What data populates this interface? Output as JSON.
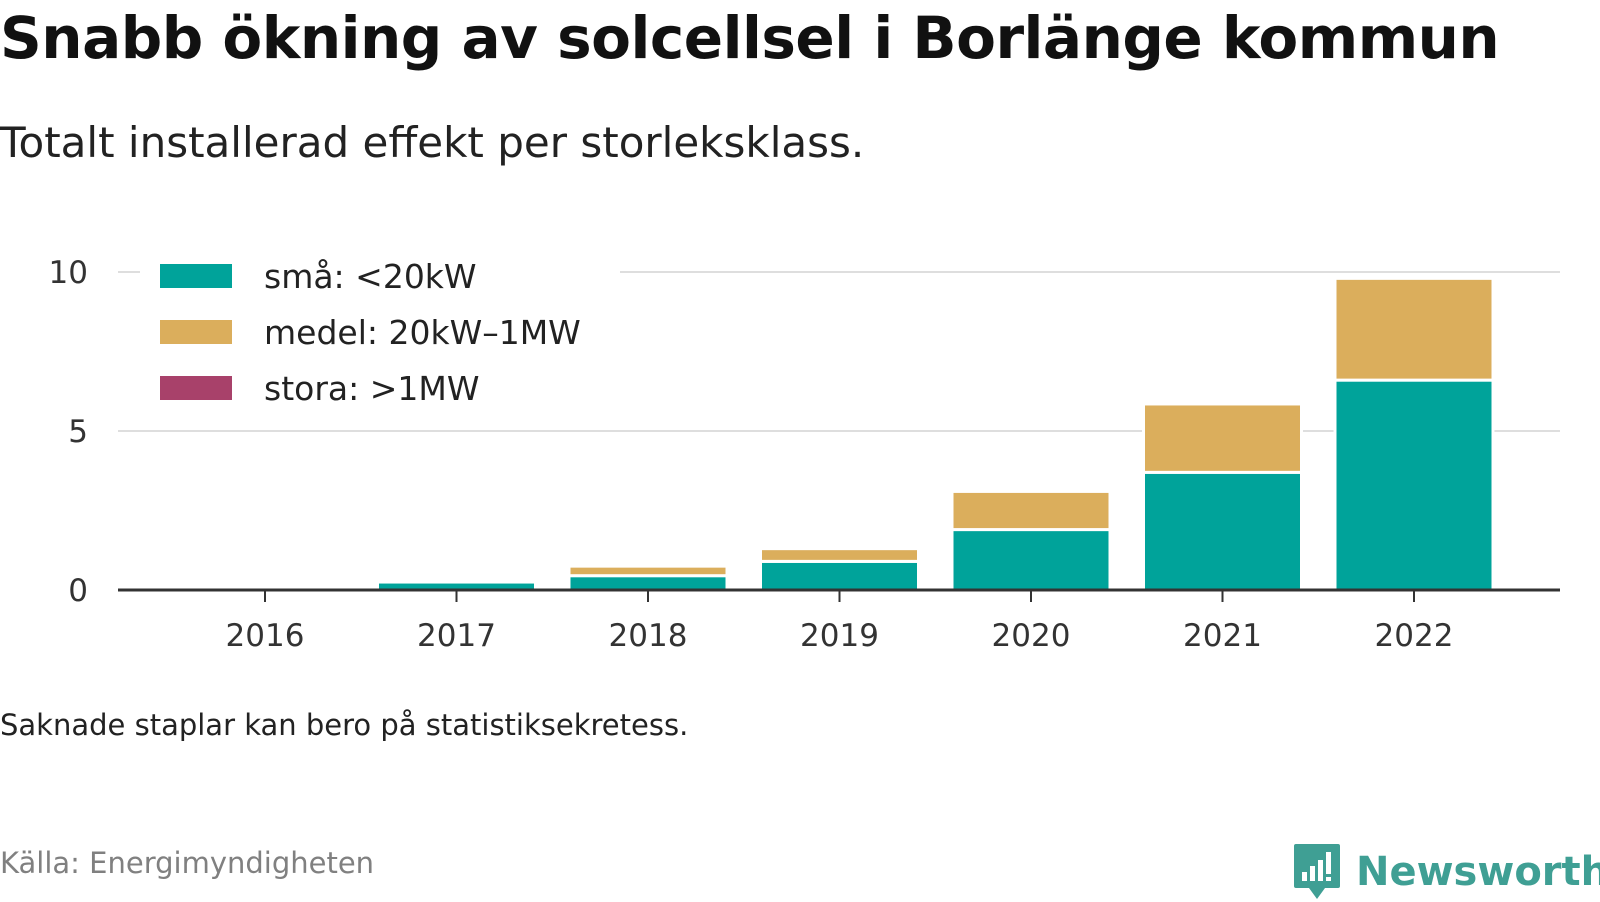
{
  "header": {
    "title": "Snabb ökning av solcellsel i Borlänge kommun",
    "subtitle": "Totalt installerad effekt per storleksklass."
  },
  "footer": {
    "note": "Saknade staplar kan bero på statistiksekretess.",
    "source": "Källa: Energimyndigheten",
    "brand": "Newsworthy"
  },
  "colors": {
    "teal": "#00a39a",
    "gold": "#dbae5c",
    "plum": "#a8416a",
    "brand": "#3f9f94"
  },
  "chart_data": {
    "type": "bar",
    "stacked": true,
    "categories": [
      "2016",
      "2017",
      "2018",
      "2019",
      "2020",
      "2021",
      "2022"
    ],
    "series": [
      {
        "name": "små: <20kW",
        "color": "#00a39a",
        "values": [
          0,
          0.25,
          0.45,
          0.9,
          1.9,
          3.7,
          6.6
        ]
      },
      {
        "name": "medel: 20kW–1MW",
        "color": "#dbae5c",
        "values": [
          0,
          0,
          0.3,
          0.4,
          1.2,
          2.15,
          3.2
        ]
      },
      {
        "name": "stora: >1MW",
        "color": "#a8416a",
        "values": [
          0,
          0,
          0,
          0,
          0,
          0,
          0
        ]
      }
    ],
    "yticks": [
      0,
      5,
      10
    ],
    "ylim": [
      0,
      10
    ],
    "grid": true,
    "legend_position": "top-left"
  }
}
